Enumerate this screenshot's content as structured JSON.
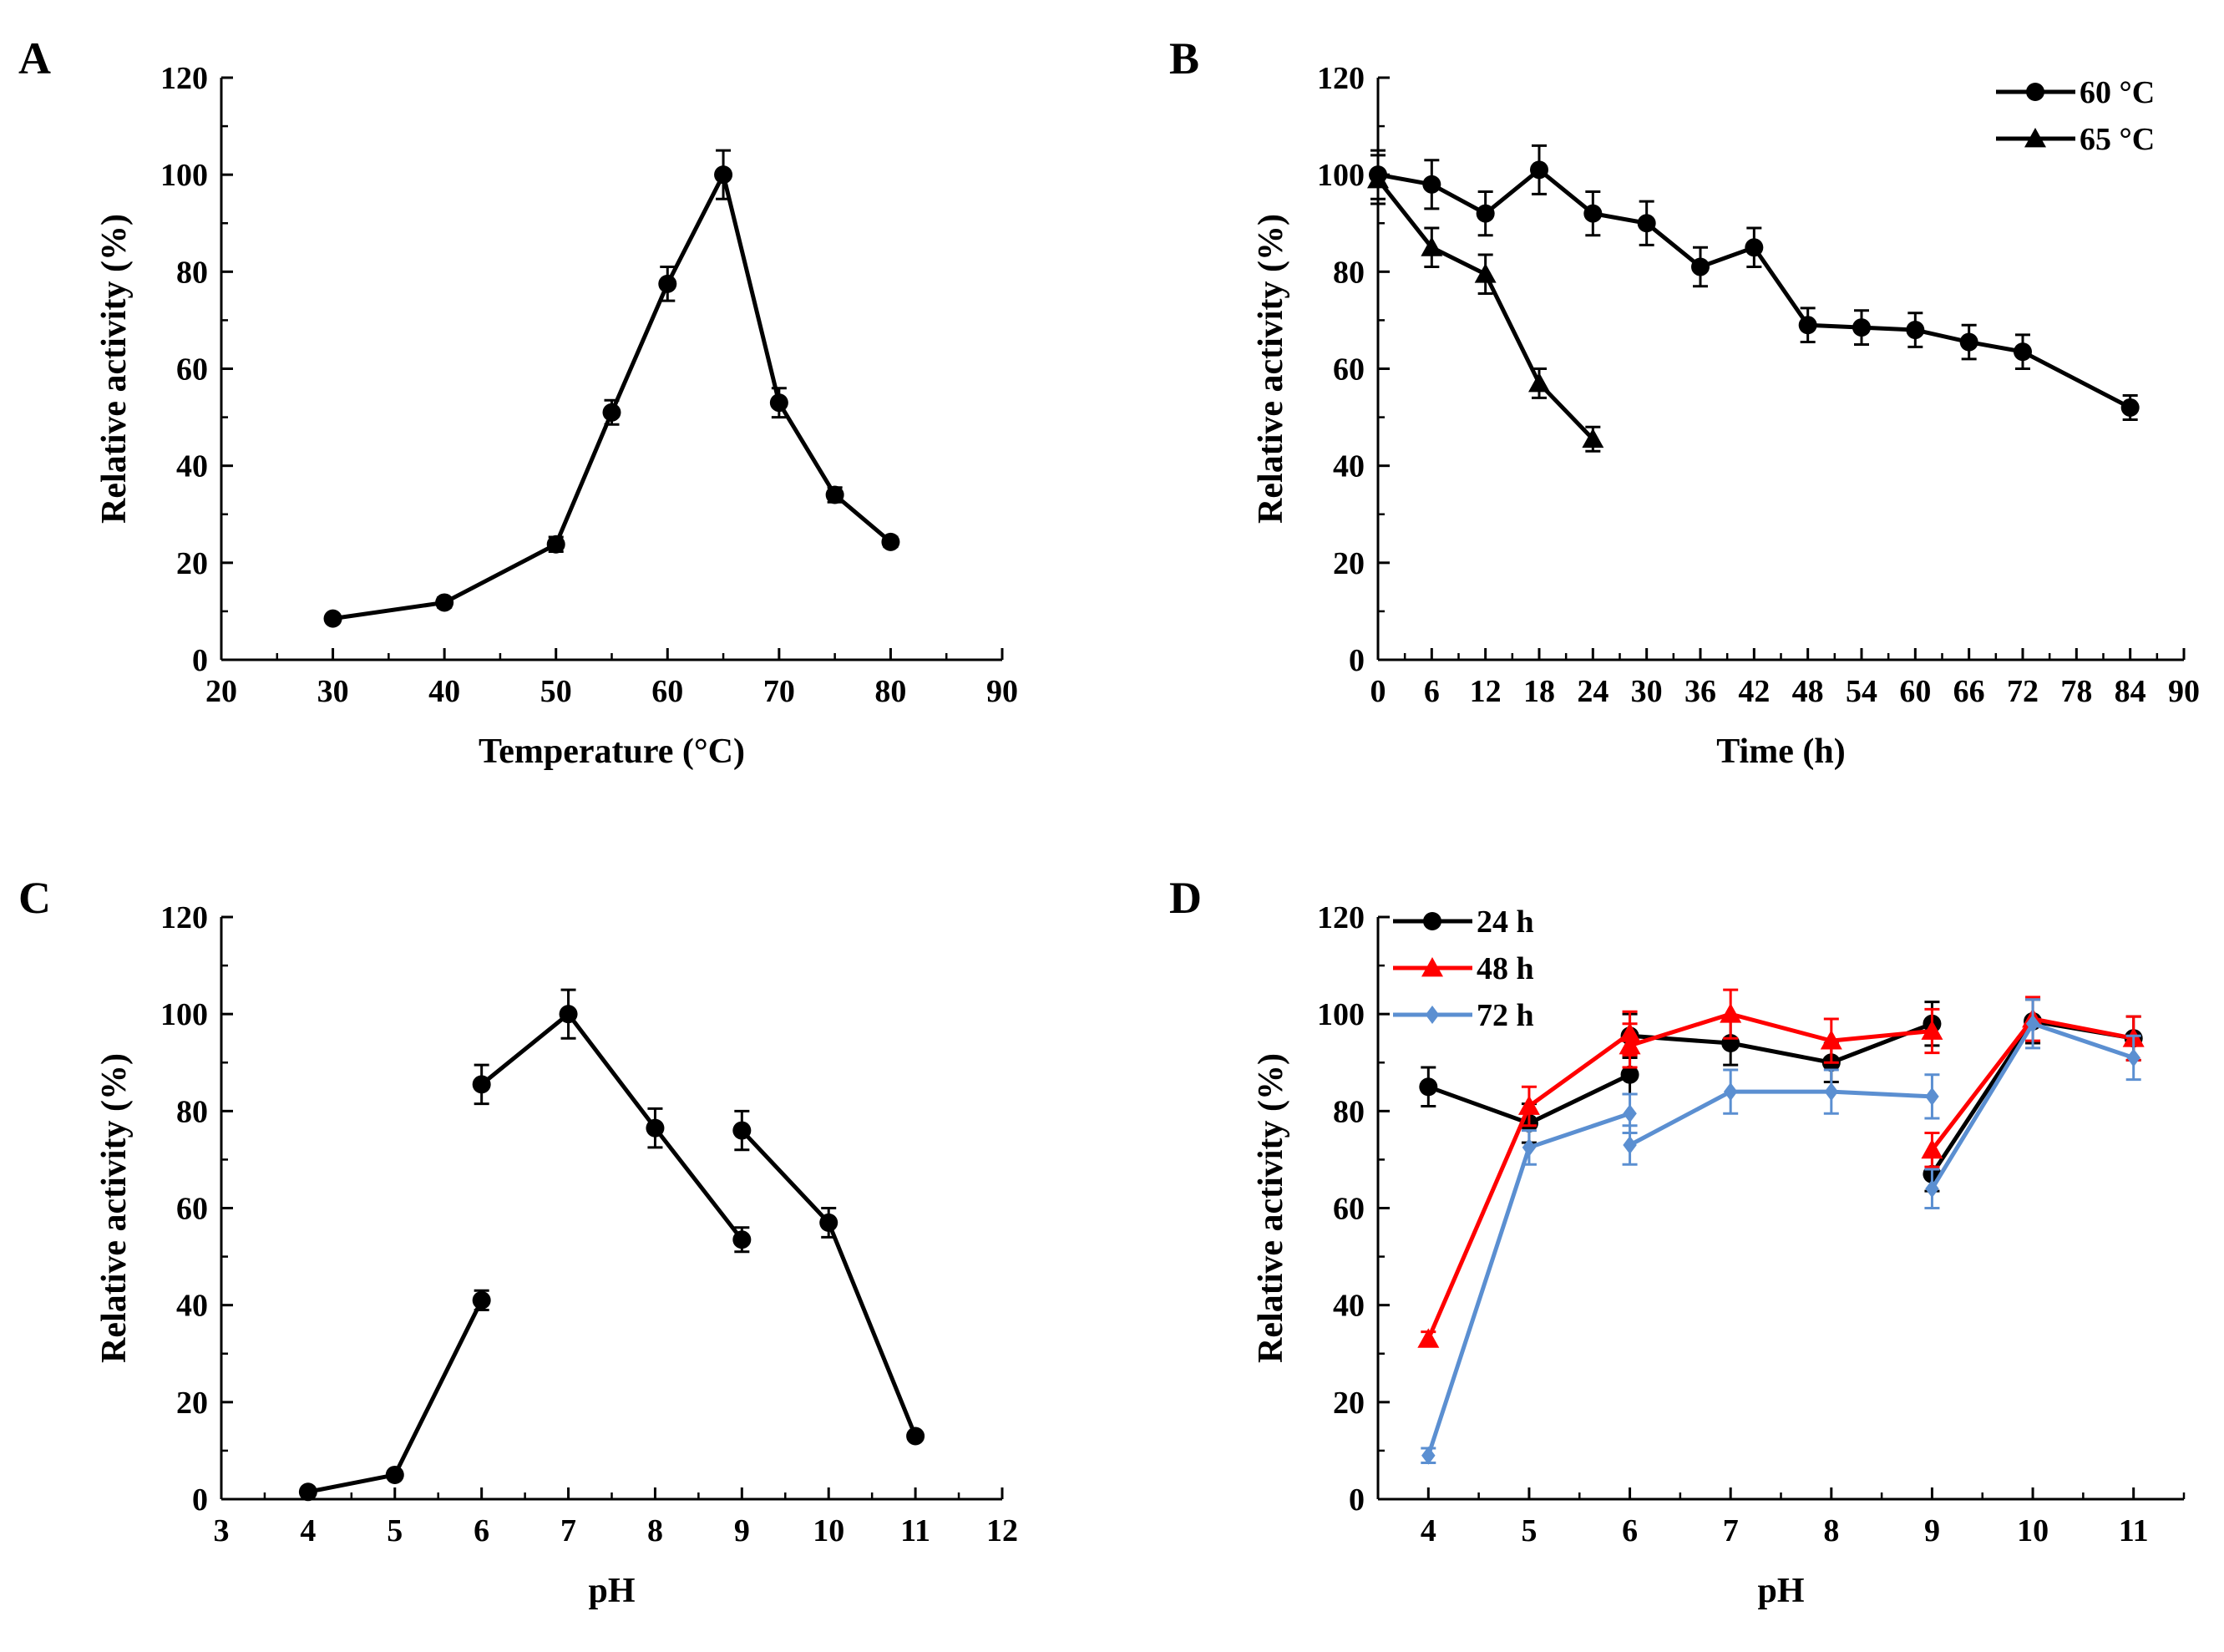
{
  "figure": {
    "background": "#ffffff",
    "ink": "#000000"
  },
  "chart_data": [
    {
      "panel": "A",
      "type": "line",
      "xlabel": "Temperature (°C)",
      "ylabel": "Relative activity (%)",
      "xlim": [
        20,
        90
      ],
      "ylim": [
        0,
        120
      ],
      "xticks": [
        20,
        30,
        40,
        50,
        60,
        70,
        80,
        90
      ],
      "yticks": [
        0,
        20,
        40,
        60,
        80,
        100,
        120
      ],
      "grid": false,
      "series": [
        {
          "name": "activity",
          "color": "#000000",
          "marker": "circle",
          "segments": [
            [
              {
                "x": 30,
                "y": 8.5,
                "err": 0.8
              },
              {
                "x": 40,
                "y": 11.8,
                "err": 1.0
              },
              {
                "x": 50,
                "y": 23.8,
                "err": 1.5
              },
              {
                "x": 55,
                "y": 51,
                "err": 2.5
              },
              {
                "x": 60,
                "y": 77.5,
                "err": 3.5
              },
              {
                "x": 65,
                "y": 100,
                "err": 5
              },
              {
                "x": 70,
                "y": 53,
                "err": 3
              },
              {
                "x": 75,
                "y": 34,
                "err": 1.5
              },
              {
                "x": 80,
                "y": 24.3,
                "err": 1.0
              }
            ]
          ]
        }
      ]
    },
    {
      "panel": "B",
      "type": "line",
      "xlabel": "Time (h)",
      "ylabel": "Relative activity (%)",
      "xlim": [
        0,
        90
      ],
      "ylim": [
        0,
        120
      ],
      "xticks": [
        0,
        6,
        12,
        18,
        24,
        30,
        36,
        42,
        48,
        54,
        60,
        66,
        72,
        78,
        84,
        90
      ],
      "yticks": [
        0,
        20,
        40,
        60,
        80,
        100,
        120
      ],
      "grid": false,
      "legend": "top-right",
      "series": [
        {
          "name": "60 °C",
          "color": "#000000",
          "marker": "circle",
          "segments": [
            [
              {
                "x": 0,
                "y": 100,
                "err": 5
              },
              {
                "x": 6,
                "y": 98,
                "err": 5
              },
              {
                "x": 12,
                "y": 92,
                "err": 4.5
              },
              {
                "x": 18,
                "y": 101,
                "err": 5
              },
              {
                "x": 24,
                "y": 92,
                "err": 4.5
              },
              {
                "x": 30,
                "y": 90,
                "err": 4.5
              },
              {
                "x": 36,
                "y": 81,
                "err": 4
              },
              {
                "x": 42,
                "y": 85,
                "err": 4
              },
              {
                "x": 48,
                "y": 69,
                "err": 3.5
              },
              {
                "x": 54,
                "y": 68.5,
                "err": 3.5
              },
              {
                "x": 60,
                "y": 68,
                "err": 3.5
              },
              {
                "x": 66,
                "y": 65.5,
                "err": 3.5
              },
              {
                "x": 72,
                "y": 63.5,
                "err": 3.5
              },
              {
                "x": 84,
                "y": 52,
                "err": 2.5
              }
            ]
          ]
        },
        {
          "name": "65 °C",
          "color": "#000000",
          "marker": "triangle",
          "segments": [
            [
              {
                "x": 0,
                "y": 99,
                "err": 5
              },
              {
                "x": 6,
                "y": 85,
                "err": 4
              },
              {
                "x": 12,
                "y": 79.5,
                "err": 4
              },
              {
                "x": 18,
                "y": 57,
                "err": 3
              },
              {
                "x": 24,
                "y": 45.5,
                "err": 2.5
              }
            ]
          ]
        }
      ]
    },
    {
      "panel": "C",
      "type": "line",
      "xlabel": "pH",
      "ylabel": "Relative activity (%)",
      "xlim": [
        3,
        12
      ],
      "ylim": [
        0,
        120
      ],
      "xticks": [
        3,
        4,
        5,
        6,
        7,
        8,
        9,
        10,
        11,
        12
      ],
      "yticks": [
        0,
        20,
        40,
        60,
        80,
        100,
        120
      ],
      "grid": false,
      "series": [
        {
          "name": "activity",
          "color": "#000000",
          "marker": "circle",
          "segments": [
            [
              {
                "x": 4,
                "y": 1.5,
                "err": 0.5
              },
              {
                "x": 5,
                "y": 5,
                "err": 0.6
              },
              {
                "x": 6,
                "y": 41,
                "err": 2
              }
            ],
            [
              {
                "x": 6,
                "y": 85.5,
                "err": 4
              },
              {
                "x": 7,
                "y": 100,
                "err": 5
              },
              {
                "x": 8,
                "y": 76.5,
                "err": 4
              },
              {
                "x": 9,
                "y": 53.5,
                "err": 2.5
              }
            ],
            [
              {
                "x": 9,
                "y": 76,
                "err": 4
              },
              {
                "x": 10,
                "y": 57,
                "err": 3
              },
              {
                "x": 11,
                "y": 13,
                "err": 0.8
              }
            ]
          ]
        }
      ]
    },
    {
      "panel": "D",
      "type": "line",
      "xlabel": "pH",
      "ylabel": "Relative activity (%)",
      "xlim": [
        3.5,
        11.5
      ],
      "ylim": [
        0,
        120
      ],
      "xticks": [
        4,
        5,
        6,
        7,
        8,
        9,
        10,
        11
      ],
      "yticks": [
        0,
        20,
        40,
        60,
        80,
        100,
        120
      ],
      "grid": false,
      "legend": "top-left",
      "series": [
        {
          "name": "24 h",
          "color": "#000000",
          "marker": "circle",
          "segments": [
            [
              {
                "x": 4,
                "y": 85,
                "err": 4
              },
              {
                "x": 5,
                "y": 77.5,
                "err": 4
              },
              {
                "x": 6,
                "y": 87.5,
                "err": 4
              }
            ],
            [
              {
                "x": 6,
                "y": 95.5,
                "err": 4.5
              },
              {
                "x": 7,
                "y": 94,
                "err": 4.5
              },
              {
                "x": 8,
                "y": 90,
                "err": 4
              },
              {
                "x": 9,
                "y": 98,
                "err": 4.5
              }
            ],
            [
              {
                "x": 9,
                "y": 67,
                "err": 3.5
              },
              {
                "x": 10,
                "y": 98.5,
                "err": 4.5
              },
              {
                "x": 11,
                "y": 95,
                "err": 4.5
              }
            ]
          ]
        },
        {
          "name": "48 h",
          "color": "#ff0000",
          "marker": "triangle",
          "segments": [
            [
              {
                "x": 4,
                "y": 33,
                "err": 1.5
              },
              {
                "x": 5,
                "y": 81,
                "err": 4
              },
              {
                "x": 6,
                "y": 96,
                "err": 4.5
              }
            ],
            [
              {
                "x": 6,
                "y": 93.5,
                "err": 4.5
              },
              {
                "x": 7,
                "y": 100,
                "err": 5
              },
              {
                "x": 8,
                "y": 94.5,
                "err": 4.5
              },
              {
                "x": 9,
                "y": 96.5,
                "err": 4.5
              }
            ],
            [
              {
                "x": 9,
                "y": 72,
                "err": 3.5
              },
              {
                "x": 10,
                "y": 99,
                "err": 4.5
              },
              {
                "x": 11,
                "y": 95,
                "err": 4.5
              }
            ]
          ]
        },
        {
          "name": "72 h",
          "color": "#5b8fd1",
          "marker": "diamond",
          "segments": [
            [
              {
                "x": 4,
                "y": 9,
                "err": 1.5
              },
              {
                "x": 5,
                "y": 72.5,
                "err": 3.5
              },
              {
                "x": 6,
                "y": 79.5,
                "err": 4
              }
            ],
            [
              {
                "x": 6,
                "y": 73,
                "err": 4
              },
              {
                "x": 7,
                "y": 84,
                "err": 4.5
              },
              {
                "x": 8,
                "y": 84,
                "err": 4.5
              },
              {
                "x": 9,
                "y": 83,
                "err": 4.5
              }
            ],
            [
              {
                "x": 9,
                "y": 64,
                "err": 4
              },
              {
                "x": 10,
                "y": 98,
                "err": 5
              },
              {
                "x": 11,
                "y": 91,
                "err": 4.5
              }
            ]
          ]
        }
      ]
    }
  ]
}
